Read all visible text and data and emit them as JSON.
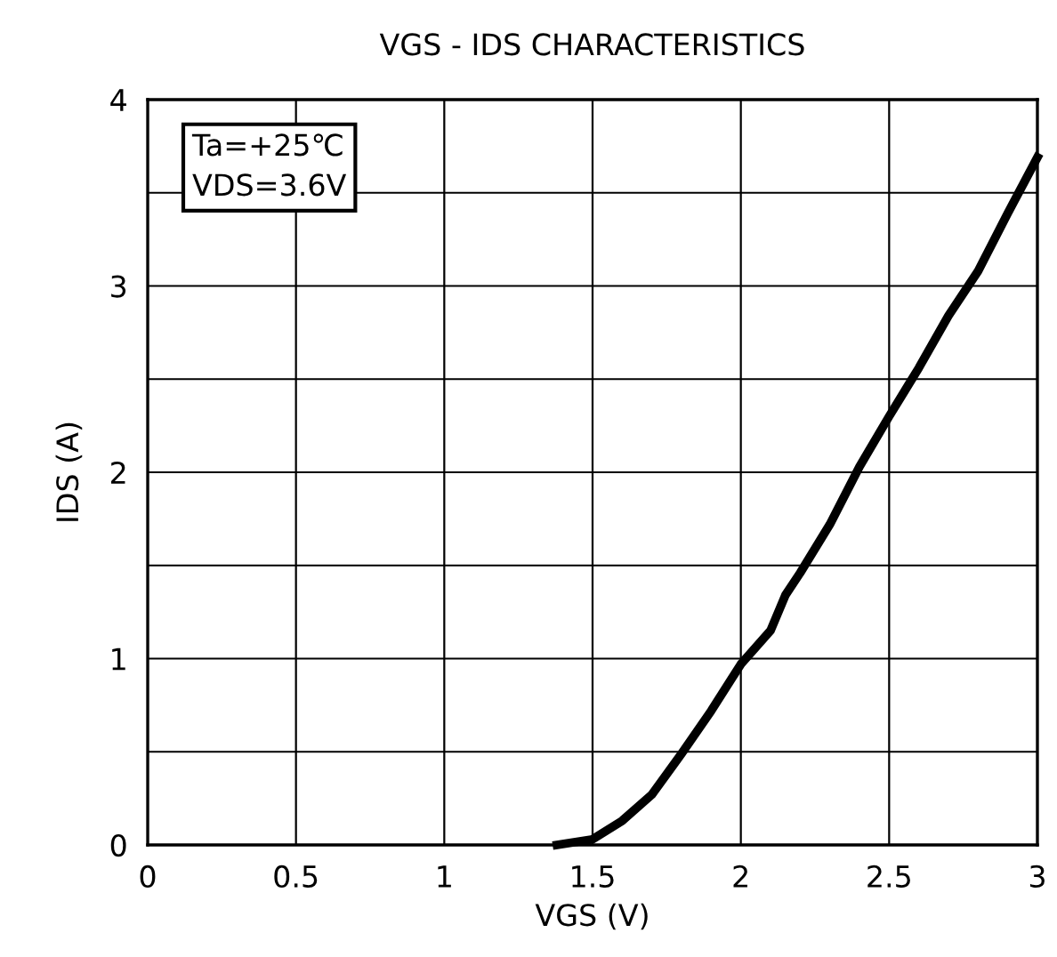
{
  "chart_data": {
    "type": "line",
    "title": "VGS - IDS CHARACTERISTICS",
    "xlabel": "VGS (V)",
    "ylabel": "IDS (A)",
    "annotations": [
      "Ta=+25℃\nVDS=3.6V"
    ],
    "x": [
      1.38,
      1.5,
      1.6,
      1.7,
      1.8,
      1.9,
      2.0,
      2.1,
      2.15,
      2.2,
      2.3,
      2.4,
      2.5,
      2.6,
      2.7,
      2.8,
      2.9,
      3.0
    ],
    "series": [
      {
        "color": "#000000",
        "values": [
          0,
          0.03,
          0.13,
          0.27,
          0.49,
          0.72,
          0.97,
          1.15,
          1.34,
          1.46,
          1.72,
          2.03,
          2.3,
          2.56,
          2.84,
          3.08,
          3.39,
          3.69
        ]
      }
    ],
    "xlim": [
      0,
      3
    ],
    "ylim": [
      0,
      4
    ],
    "xticks": [
      0,
      0.5,
      1,
      1.5,
      2,
      2.5,
      3
    ],
    "yticks": [
      0,
      {
        "value": 0.5,
        "label": null
      },
      1,
      {
        "value": 1.5,
        "label": null
      },
      2,
      {
        "value": 2.5,
        "label": null
      },
      3,
      {
        "value": 3.5,
        "label": null
      },
      4
    ],
    "grid": true,
    "legend": false,
    "marker": "none",
    "line_style": "solid"
  }
}
